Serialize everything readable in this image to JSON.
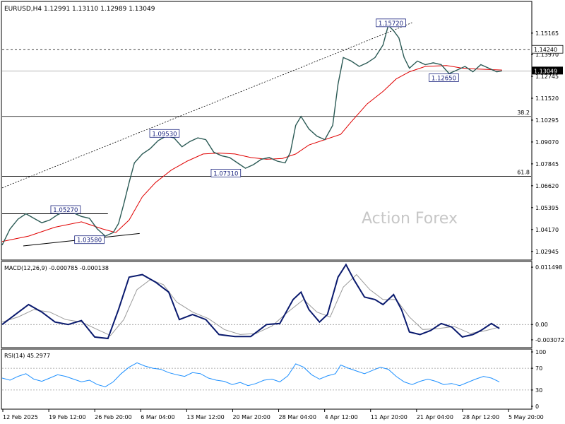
{
  "chart_data": {
    "type": "line",
    "main": {
      "title": "EURUSD,H4  1.12991 1.13110 1.12989 1.13049",
      "watermark": "Action Forex",
      "ylim": [
        1.025,
        1.169
      ],
      "y_ticks": [
        "1.15165",
        "1.13970",
        "1.12745",
        "1.11520",
        "1.10295",
        "1.09070",
        "1.07845",
        "1.06620",
        "1.05395",
        "1.04170",
        "1.02945"
      ],
      "current_price": "1.13049",
      "dashed_level": "1.14240",
      "fib_levels": [
        {
          "label": "38.2",
          "value": 1.105
        },
        {
          "label": "61.8",
          "value": 1.0715
        }
      ],
      "price_labels": [
        {
          "text": "1.15720",
          "x": 0.735,
          "value": 1.1572
        },
        {
          "text": "1.09530",
          "x": 0.307,
          "value": 1.0953
        },
        {
          "text": "1.07310",
          "x": 0.423,
          "value": 1.0731
        },
        {
          "text": "1.05270",
          "x": 0.12,
          "value": 1.0527
        },
        {
          "text": "1.03580",
          "x": 0.165,
          "value": 1.0358
        },
        {
          "text": "1.12650",
          "x": 0.835,
          "value": 1.1265
        }
      ],
      "price": [
        [
          0.0,
          1.033
        ],
        [
          0.015,
          1.042
        ],
        [
          0.03,
          1.0475
        ],
        [
          0.045,
          1.0505
        ],
        [
          0.06,
          1.048
        ],
        [
          0.075,
          1.0455
        ],
        [
          0.09,
          1.047
        ],
        [
          0.105,
          1.05
        ],
        [
          0.12,
          1.052
        ],
        [
          0.135,
          1.051
        ],
        [
          0.15,
          1.049
        ],
        [
          0.165,
          1.048
        ],
        [
          0.18,
          1.042
        ],
        [
          0.195,
          1.038
        ],
        [
          0.21,
          1.04
        ],
        [
          0.22,
          1.045
        ],
        [
          0.23,
          1.056
        ],
        [
          0.24,
          1.068
        ],
        [
          0.25,
          1.079
        ],
        [
          0.265,
          1.084
        ],
        [
          0.28,
          1.087
        ],
        [
          0.295,
          1.0915
        ],
        [
          0.31,
          1.094
        ],
        [
          0.325,
          1.093
        ],
        [
          0.34,
          1.088
        ],
        [
          0.355,
          1.091
        ],
        [
          0.37,
          1.093
        ],
        [
          0.385,
          1.092
        ],
        [
          0.4,
          1.085
        ],
        [
          0.415,
          1.083
        ],
        [
          0.43,
          1.082
        ],
        [
          0.445,
          1.079
        ],
        [
          0.46,
          1.076
        ],
        [
          0.475,
          1.078
        ],
        [
          0.49,
          1.081
        ],
        [
          0.505,
          1.082
        ],
        [
          0.52,
          1.08
        ],
        [
          0.535,
          1.079
        ],
        [
          0.545,
          1.085
        ],
        [
          0.555,
          1.1
        ],
        [
          0.565,
          1.105
        ],
        [
          0.58,
          1.098
        ],
        [
          0.595,
          1.094
        ],
        [
          0.61,
          1.092
        ],
        [
          0.625,
          1.1
        ],
        [
          0.635,
          1.123
        ],
        [
          0.645,
          1.138
        ],
        [
          0.66,
          1.136
        ],
        [
          0.675,
          1.133
        ],
        [
          0.69,
          1.135
        ],
        [
          0.705,
          1.138
        ],
        [
          0.72,
          1.145
        ],
        [
          0.73,
          1.156
        ],
        [
          0.74,
          1.153
        ],
        [
          0.75,
          1.149
        ],
        [
          0.76,
          1.138
        ],
        [
          0.77,
          1.132
        ],
        [
          0.785,
          1.136
        ],
        [
          0.8,
          1.134
        ],
        [
          0.815,
          1.135
        ],
        [
          0.83,
          1.134
        ],
        [
          0.845,
          1.129
        ],
        [
          0.86,
          1.131
        ],
        [
          0.875,
          1.133
        ],
        [
          0.89,
          1.13
        ],
        [
          0.905,
          1.134
        ],
        [
          0.92,
          1.132
        ],
        [
          0.935,
          1.13
        ],
        [
          0.945,
          1.1305
        ]
      ],
      "ma": [
        [
          0.0,
          1.035
        ],
        [
          0.05,
          1.038
        ],
        [
          0.1,
          1.043
        ],
        [
          0.15,
          1.046
        ],
        [
          0.19,
          1.042
        ],
        [
          0.215,
          1.04
        ],
        [
          0.24,
          1.047
        ],
        [
          0.265,
          1.06
        ],
        [
          0.29,
          1.068
        ],
        [
          0.32,
          1.075
        ],
        [
          0.35,
          1.08
        ],
        [
          0.38,
          1.084
        ],
        [
          0.41,
          1.0845
        ],
        [
          0.44,
          1.084
        ],
        [
          0.47,
          1.082
        ],
        [
          0.5,
          1.081
        ],
        [
          0.53,
          1.0815
        ],
        [
          0.555,
          1.084
        ],
        [
          0.58,
          1.089
        ],
        [
          0.61,
          1.092
        ],
        [
          0.64,
          1.095
        ],
        [
          0.66,
          1.102
        ],
        [
          0.69,
          1.112
        ],
        [
          0.72,
          1.119
        ],
        [
          0.745,
          1.126
        ],
        [
          0.77,
          1.13
        ],
        [
          0.8,
          1.133
        ],
        [
          0.84,
          1.1335
        ],
        [
          0.87,
          1.132
        ],
        [
          0.9,
          1.1315
        ],
        [
          0.945,
          1.131
        ]
      ]
    },
    "macd": {
      "label": "MACD(12,26,9) -0.000785 -0.000138",
      "ylim": [
        -0.0045,
        0.0125
      ],
      "y_ticks": [
        "0.011498",
        "0.00",
        "-0.003072"
      ],
      "macd": [
        [
          0.0,
          0.0
        ],
        [
          0.025,
          0.002
        ],
        [
          0.05,
          0.004
        ],
        [
          0.075,
          0.0025
        ],
        [
          0.1,
          0.0005
        ],
        [
          0.125,
          0.0
        ],
        [
          0.15,
          0.0008
        ],
        [
          0.175,
          -0.0025
        ],
        [
          0.2,
          -0.0028
        ],
        [
          0.22,
          0.003
        ],
        [
          0.24,
          0.0095
        ],
        [
          0.265,
          0.01
        ],
        [
          0.29,
          0.0085
        ],
        [
          0.315,
          0.0065
        ],
        [
          0.335,
          0.001
        ],
        [
          0.36,
          0.002
        ],
        [
          0.385,
          0.001
        ],
        [
          0.41,
          -0.002
        ],
        [
          0.44,
          -0.0024
        ],
        [
          0.47,
          -0.0024
        ],
        [
          0.5,
          0.0
        ],
        [
          0.525,
          0.0002
        ],
        [
          0.55,
          0.005
        ],
        [
          0.565,
          0.0065
        ],
        [
          0.58,
          0.003
        ],
        [
          0.6,
          0.0005
        ],
        [
          0.615,
          0.002
        ],
        [
          0.635,
          0.0095
        ],
        [
          0.65,
          0.012
        ],
        [
          0.665,
          0.009
        ],
        [
          0.685,
          0.0055
        ],
        [
          0.705,
          0.005
        ],
        [
          0.72,
          0.004
        ],
        [
          0.74,
          0.006
        ],
        [
          0.755,
          0.003
        ],
        [
          0.77,
          -0.0015
        ],
        [
          0.79,
          -0.002
        ],
        [
          0.81,
          -0.0012
        ],
        [
          0.83,
          0.0002
        ],
        [
          0.85,
          -0.0005
        ],
        [
          0.87,
          -0.0025
        ],
        [
          0.89,
          -0.002
        ],
        [
          0.905,
          -0.0012
        ],
        [
          0.925,
          0.0002
        ],
        [
          0.94,
          -0.0008
        ]
      ],
      "signal": [
        [
          0.0,
          0.0005
        ],
        [
          0.03,
          0.0015
        ],
        [
          0.06,
          0.003
        ],
        [
          0.09,
          0.0025
        ],
        [
          0.12,
          0.001
        ],
        [
          0.15,
          0.0005
        ],
        [
          0.18,
          -0.001
        ],
        [
          0.205,
          -0.0022
        ],
        [
          0.23,
          0.001
        ],
        [
          0.255,
          0.007
        ],
        [
          0.28,
          0.009
        ],
        [
          0.305,
          0.008
        ],
        [
          0.33,
          0.0045
        ],
        [
          0.36,
          0.0025
        ],
        [
          0.39,
          0.0012
        ],
        [
          0.42,
          -0.001
        ],
        [
          0.45,
          -0.002
        ],
        [
          0.48,
          -0.0018
        ],
        [
          0.51,
          -0.0003
        ],
        [
          0.54,
          0.0025
        ],
        [
          0.57,
          0.005
        ],
        [
          0.595,
          0.0025
        ],
        [
          0.62,
          0.0015
        ],
        [
          0.645,
          0.0075
        ],
        [
          0.67,
          0.01
        ],
        [
          0.695,
          0.007
        ],
        [
          0.72,
          0.005
        ],
        [
          0.745,
          0.005
        ],
        [
          0.77,
          0.0015
        ],
        [
          0.795,
          -0.001
        ],
        [
          0.825,
          -0.0008
        ],
        [
          0.855,
          -0.0004
        ],
        [
          0.885,
          -0.0018
        ],
        [
          0.915,
          -0.0012
        ],
        [
          0.94,
          -0.0005
        ]
      ]
    },
    "rsi": {
      "label": "RSI(14) 45.2977",
      "ylim": [
        0,
        100
      ],
      "y_ticks": [
        "100",
        "70",
        "30",
        "0"
      ],
      "levels": [
        70,
        30
      ],
      "values": [
        [
          0.0,
          52
        ],
        [
          0.015,
          48
        ],
        [
          0.03,
          55
        ],
        [
          0.045,
          60
        ],
        [
          0.06,
          50
        ],
        [
          0.075,
          46
        ],
        [
          0.09,
          52
        ],
        [
          0.105,
          58
        ],
        [
          0.12,
          55
        ],
        [
          0.135,
          50
        ],
        [
          0.15,
          45
        ],
        [
          0.165,
          48
        ],
        [
          0.18,
          40
        ],
        [
          0.195,
          36
        ],
        [
          0.21,
          45
        ],
        [
          0.225,
          60
        ],
        [
          0.24,
          72
        ],
        [
          0.255,
          80
        ],
        [
          0.27,
          74
        ],
        [
          0.285,
          70
        ],
        [
          0.3,
          68
        ],
        [
          0.315,
          62
        ],
        [
          0.33,
          58
        ],
        [
          0.345,
          55
        ],
        [
          0.36,
          62
        ],
        [
          0.375,
          60
        ],
        [
          0.39,
          52
        ],
        [
          0.405,
          48
        ],
        [
          0.42,
          46
        ],
        [
          0.435,
          40
        ],
        [
          0.45,
          44
        ],
        [
          0.465,
          38
        ],
        [
          0.48,
          42
        ],
        [
          0.495,
          48
        ],
        [
          0.51,
          50
        ],
        [
          0.525,
          45
        ],
        [
          0.54,
          56
        ],
        [
          0.555,
          78
        ],
        [
          0.57,
          72
        ],
        [
          0.585,
          58
        ],
        [
          0.6,
          50
        ],
        [
          0.615,
          56
        ],
        [
          0.63,
          60
        ],
        [
          0.64,
          76
        ],
        [
          0.655,
          70
        ],
        [
          0.67,
          65
        ],
        [
          0.685,
          60
        ],
        [
          0.7,
          66
        ],
        [
          0.715,
          72
        ],
        [
          0.73,
          68
        ],
        [
          0.745,
          55
        ],
        [
          0.76,
          45
        ],
        [
          0.775,
          40
        ],
        [
          0.79,
          46
        ],
        [
          0.805,
          50
        ],
        [
          0.82,
          46
        ],
        [
          0.835,
          40
        ],
        [
          0.85,
          42
        ],
        [
          0.865,
          38
        ],
        [
          0.88,
          44
        ],
        [
          0.895,
          50
        ],
        [
          0.91,
          55
        ],
        [
          0.925,
          52
        ],
        [
          0.94,
          45
        ]
      ]
    },
    "x_labels": [
      "12 Feb 2025",
      "19 Feb 12:00",
      "26 Feb 20:00",
      "6 Mar 04:00",
      "13 Mar 12:00",
      "20 Mar 20:00",
      "28 Mar 04:00",
      "4 Apr 12:00",
      "11 Apr 20:00",
      "21 Apr 04:00",
      "28 Apr 12:00",
      "5 May 20:00"
    ]
  }
}
